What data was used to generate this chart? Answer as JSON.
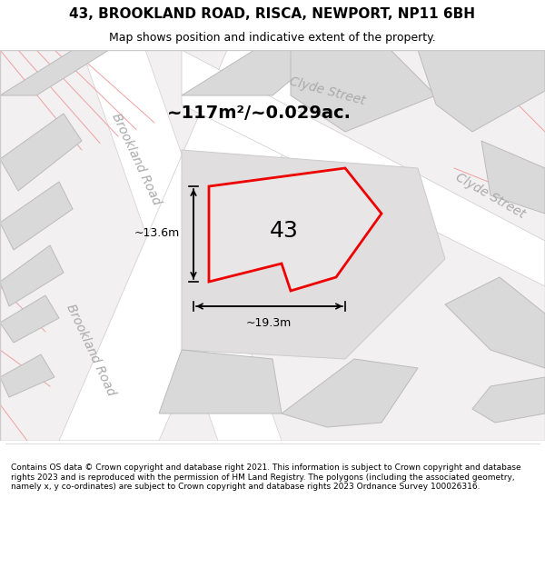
{
  "title": "43, BROOKLAND ROAD, RISCA, NEWPORT, NP11 6BH",
  "subtitle": "Map shows position and indicative extent of the property.",
  "footer": "Contains OS data © Crown copyright and database right 2021. This information is subject to Crown copyright and database rights 2023 and is reproduced with the permission of HM Land Registry. The polygons (including the associated geometry, namely x, y co-ordinates) are subject to Crown copyright and database rights 2023 Ordnance Survey 100026316.",
  "area_label": "~117m²/~0.029ac.",
  "width_label": "~19.3m",
  "height_label": "~13.6m",
  "plot_number": "43",
  "bg_color": "#f5f5f5",
  "map_bg": "#f0eeee",
  "building_color": "#d9d9d9",
  "building_edge": "#bbbbbb",
  "road_color": "#ffffff",
  "road_line_color": "#cccccc",
  "street_line_color": "#f0a0a0",
  "red_plot_color": "#ff0000",
  "plot_fill": "#e8e8e8",
  "street_text_color": "#aaaaaa",
  "map_border_color": "#cccccc",
  "title_fontsize": 11,
  "subtitle_fontsize": 9,
  "footer_fontsize": 6.5,
  "area_fontsize": 14,
  "number_fontsize": 18,
  "measurement_fontsize": 9,
  "street_fontsize": 10
}
